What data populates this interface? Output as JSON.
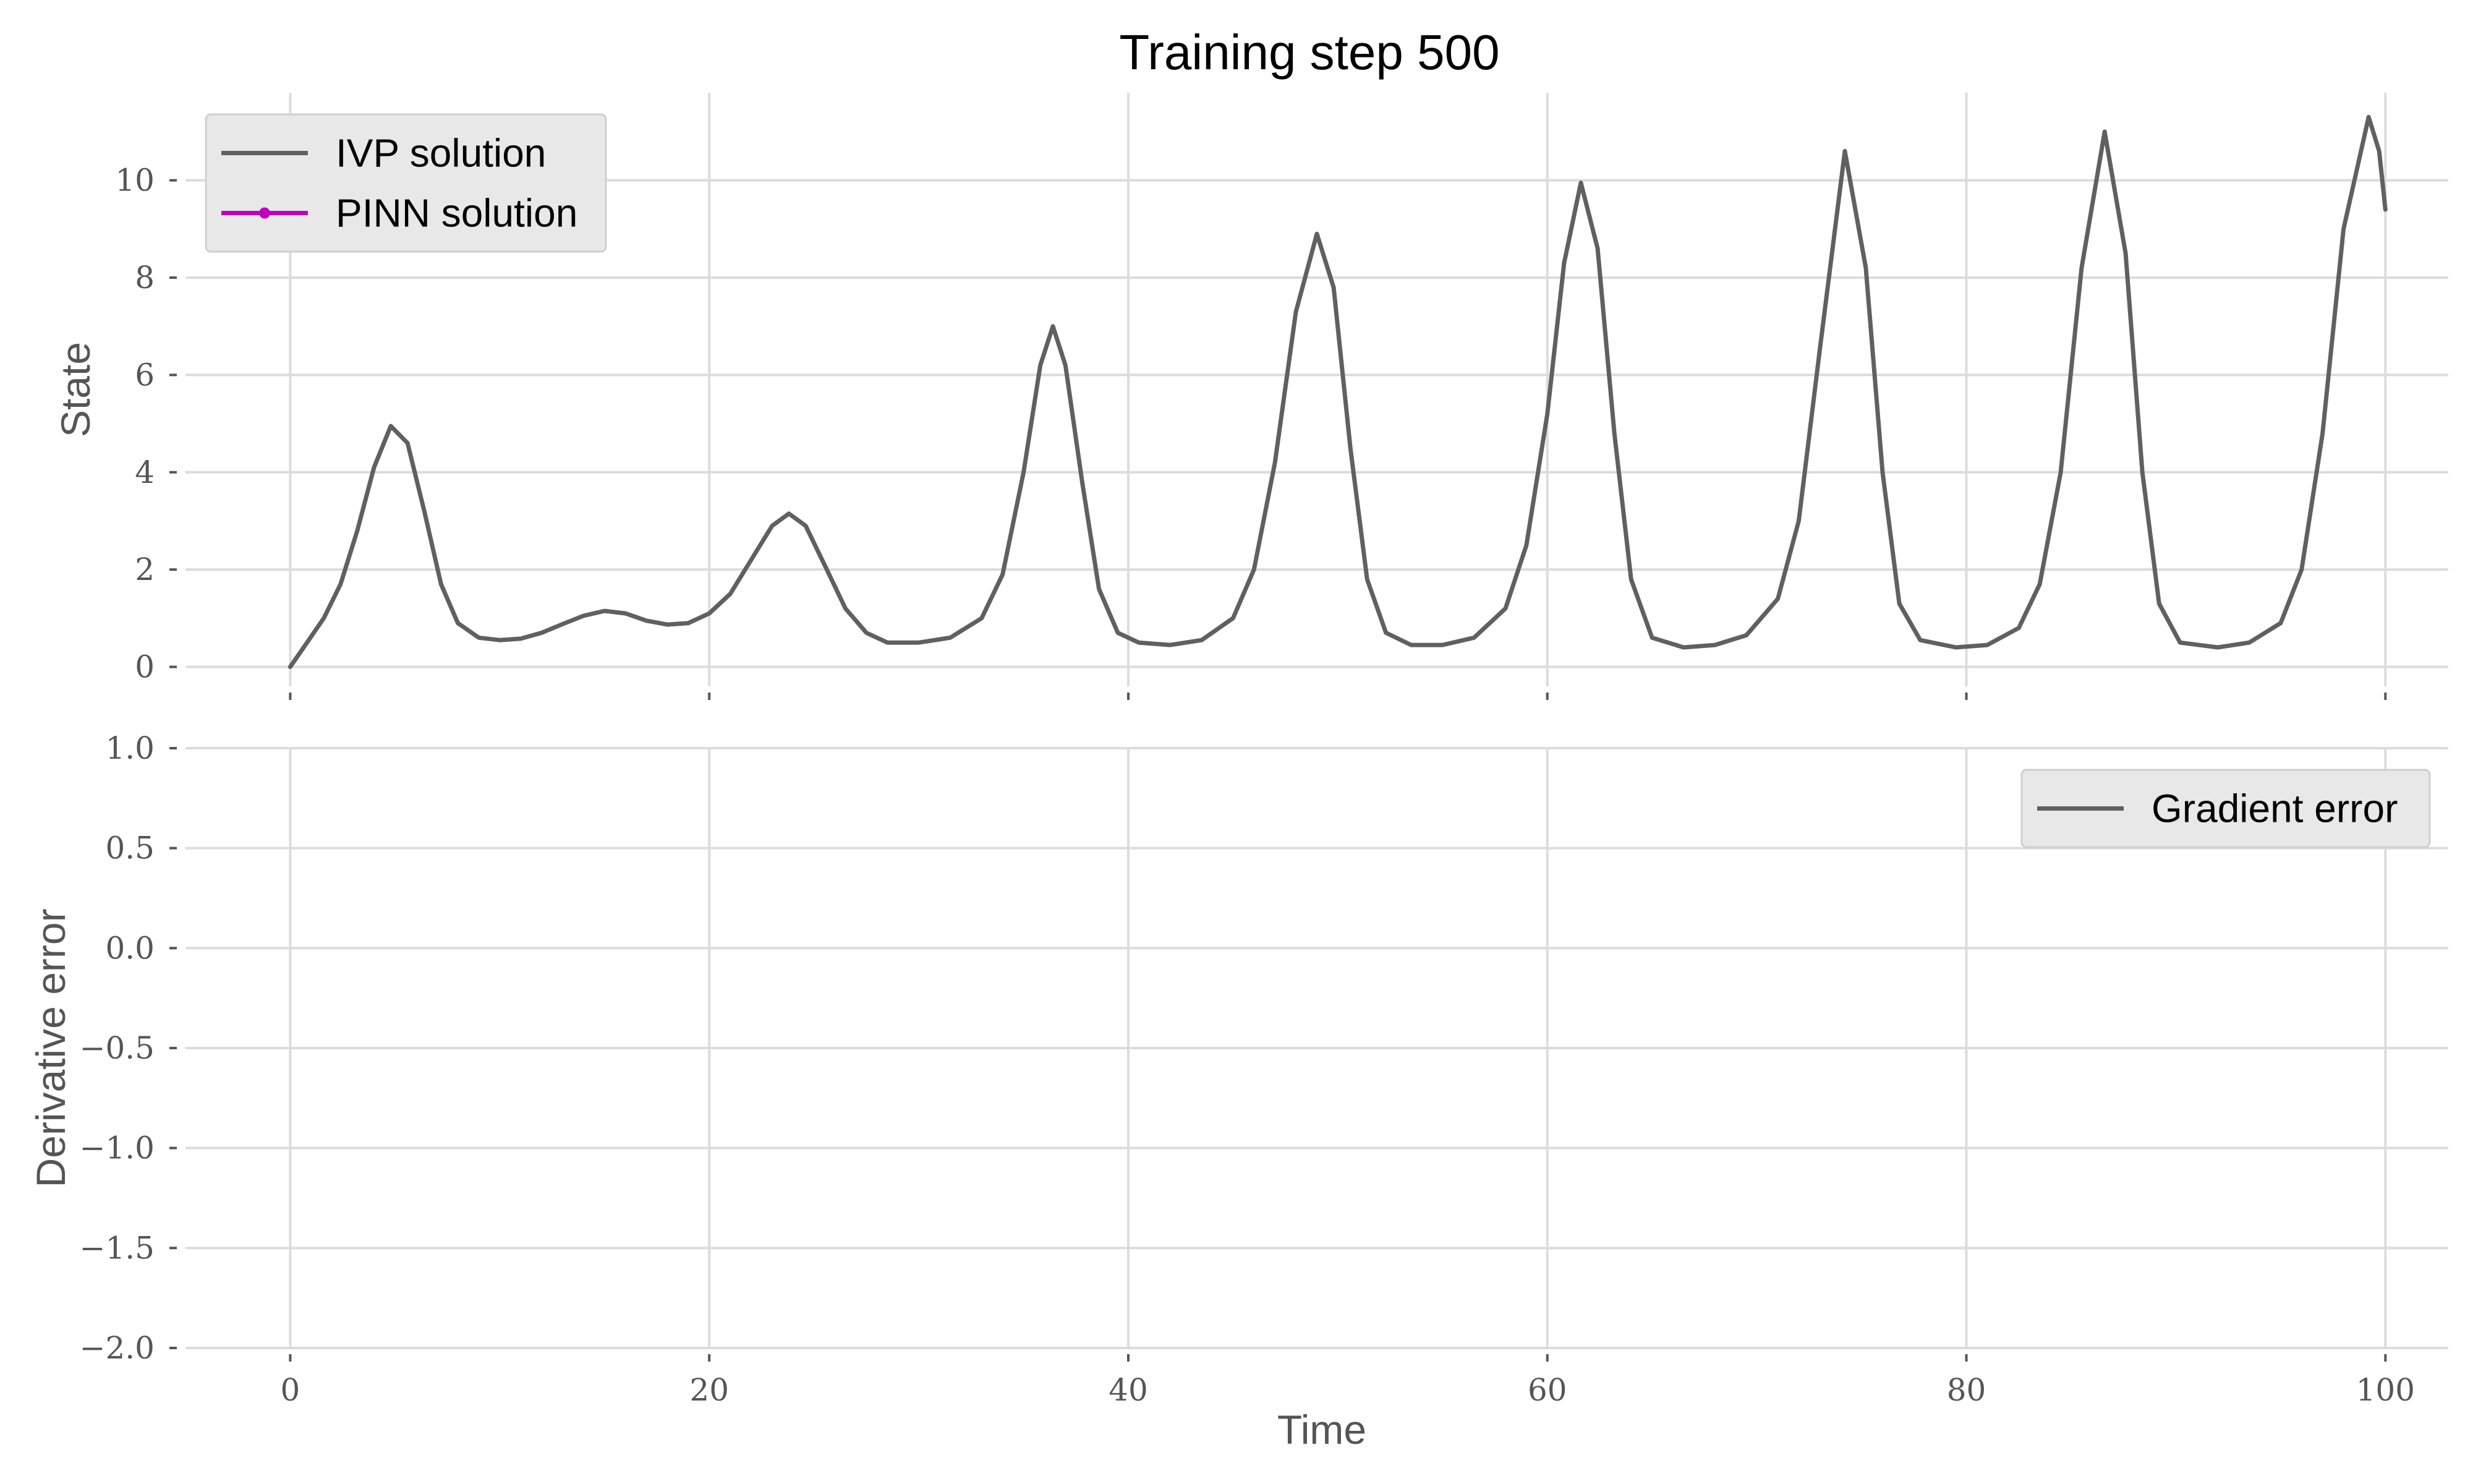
{
  "figure": {
    "title": "Training step 500"
  },
  "chart_data": [
    {
      "type": "line",
      "panel": "top",
      "title": "Training step 500",
      "xlabel": "",
      "ylabel": "State",
      "xlim": [
        -5,
        103
      ],
      "ylim": [
        -0.4,
        11.8
      ],
      "xticks": [
        0,
        20,
        40,
        60,
        80,
        100
      ],
      "yticks": [
        0,
        2,
        4,
        6,
        8,
        10
      ],
      "ytick_labels": [
        "0",
        "2",
        "4",
        "6",
        "8",
        "10"
      ],
      "grid": true,
      "legend_position": "top-left",
      "series": [
        {
          "name": "IVP solution",
          "color": "#606060",
          "points": [
            [
              0,
              0.0
            ],
            [
              0.8,
              0.5
            ],
            [
              1.6,
              1.0
            ],
            [
              2.4,
              1.7
            ],
            [
              3.2,
              2.8
            ],
            [
              4.0,
              4.1
            ],
            [
              4.8,
              4.95
            ],
            [
              5.6,
              4.6
            ],
            [
              6.4,
              3.2
            ],
            [
              7.2,
              1.7
            ],
            [
              8.0,
              0.9
            ],
            [
              9.0,
              0.6
            ],
            [
              10.0,
              0.55
            ],
            [
              11.0,
              0.58
            ],
            [
              12.0,
              0.7
            ],
            [
              13.0,
              0.88
            ],
            [
              14.0,
              1.05
            ],
            [
              15.0,
              1.15
            ],
            [
              16.0,
              1.1
            ],
            [
              17.0,
              0.95
            ],
            [
              18.0,
              0.87
            ],
            [
              19.0,
              0.9
            ],
            [
              20.0,
              1.1
            ],
            [
              21.0,
              1.5
            ],
            [
              22.0,
              2.2
            ],
            [
              23.0,
              2.9
            ],
            [
              23.8,
              3.15
            ],
            [
              24.6,
              2.9
            ],
            [
              25.5,
              2.1
            ],
            [
              26.5,
              1.2
            ],
            [
              27.5,
              0.7
            ],
            [
              28.5,
              0.5
            ],
            [
              30.0,
              0.5
            ],
            [
              31.5,
              0.6
            ],
            [
              33.0,
              1.0
            ],
            [
              34.0,
              1.9
            ],
            [
              35.0,
              4.0
            ],
            [
              35.8,
              6.2
            ],
            [
              36.4,
              7.0
            ],
            [
              37.0,
              6.2
            ],
            [
              37.8,
              3.8
            ],
            [
              38.6,
              1.6
            ],
            [
              39.5,
              0.7
            ],
            [
              40.5,
              0.5
            ],
            [
              42.0,
              0.45
            ],
            [
              43.5,
              0.55
            ],
            [
              45.0,
              1.0
            ],
            [
              46.0,
              2.0
            ],
            [
              47.0,
              4.2
            ],
            [
              48.0,
              7.3
            ],
            [
              49.0,
              8.9
            ],
            [
              49.8,
              7.8
            ],
            [
              50.6,
              4.5
            ],
            [
              51.4,
              1.8
            ],
            [
              52.3,
              0.7
            ],
            [
              53.5,
              0.45
            ],
            [
              55.0,
              0.45
            ],
            [
              56.5,
              0.6
            ],
            [
              58.0,
              1.2
            ],
            [
              59.0,
              2.5
            ],
            [
              60.0,
              5.2
            ],
            [
              60.8,
              8.3
            ],
            [
              61.6,
              9.95
            ],
            [
              62.4,
              8.6
            ],
            [
              63.2,
              4.8
            ],
            [
              64.0,
              1.8
            ],
            [
              65.0,
              0.6
            ],
            [
              66.5,
              0.4
            ],
            [
              68.0,
              0.45
            ],
            [
              69.5,
              0.65
            ],
            [
              71.0,
              1.4
            ],
            [
              72.0,
              3.0
            ],
            [
              73.0,
              6.5
            ],
            [
              74.2,
              10.6
            ],
            [
              75.2,
              8.2
            ],
            [
              76.0,
              4.0
            ],
            [
              76.8,
              1.3
            ],
            [
              77.8,
              0.55
            ],
            [
              79.5,
              0.4
            ],
            [
              81.0,
              0.45
            ],
            [
              82.5,
              0.8
            ],
            [
              83.5,
              1.7
            ],
            [
              84.5,
              4.0
            ],
            [
              85.5,
              8.2
            ],
            [
              86.6,
              11.0
            ],
            [
              87.6,
              8.5
            ],
            [
              88.4,
              4.0
            ],
            [
              89.2,
              1.3
            ],
            [
              90.2,
              0.5
            ],
            [
              92.0,
              0.4
            ],
            [
              93.5,
              0.5
            ],
            [
              95.0,
              0.9
            ],
            [
              96.0,
              2.0
            ],
            [
              97.0,
              4.8
            ],
            [
              98.0,
              9.0
            ],
            [
              99.2,
              11.3
            ],
            [
              99.7,
              10.6
            ],
            [
              100.0,
              9.4
            ]
          ]
        },
        {
          "name": "PINN solution",
          "color": "#bf00bf",
          "marker": "dot",
          "points": []
        }
      ]
    },
    {
      "type": "line",
      "panel": "bottom",
      "xlabel": "Time",
      "ylabel": "Derivative error",
      "xlim": [
        -5,
        103
      ],
      "ylim": [
        -2.0,
        1.0
      ],
      "xticks": [
        0,
        20,
        40,
        60,
        80,
        100
      ],
      "xtick_labels": [
        "0",
        "20",
        "40",
        "60",
        "80",
        "100"
      ],
      "yticks": [
        1.0,
        0.5,
        0.0,
        -0.5,
        -1.0,
        -1.5,
        -2.0
      ],
      "ytick_labels": [
        "1.0",
        "0.5",
        "0.0",
        "−0.5",
        "−1.0",
        "−1.5",
        "−2.0"
      ],
      "grid": true,
      "legend_position": "top-right",
      "series": [
        {
          "name": "Gradient error",
          "color": "#606060",
          "points": []
        }
      ]
    }
  ]
}
